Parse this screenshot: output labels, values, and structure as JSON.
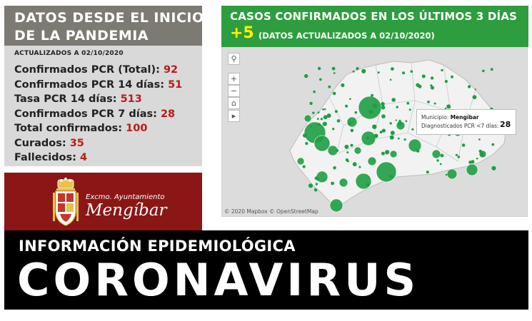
{
  "stats": {
    "title_line1": "DATOS DESDE EL INICIO",
    "title_line2": "DE LA PANDEMIA",
    "updated": "ACTUALIZADOS A 02/10/2020",
    "rows": [
      {
        "label": "Confirmados PCR (Total): ",
        "value": "92"
      },
      {
        "label": "Confirmados PCR 14 días: ",
        "value": "51"
      },
      {
        "label": "Tasa PCR 14 días: ",
        "value": "513"
      },
      {
        "label": "Confirmados PCR 7 días: ",
        "value": "28"
      },
      {
        "label": "Total confirmados: ",
        "value": "100"
      },
      {
        "label": "Curados: ",
        "value": "35"
      },
      {
        "label": "Fallecidos: ",
        "value": "4"
      }
    ]
  },
  "logo": {
    "line1": "Excmo. Ayuntamiento",
    "line2": "Mengíbar"
  },
  "map": {
    "title": "CASOS CONFIRMADOS EN LOS ÚLTIMOS 3 DÍAS",
    "delta": "+5",
    "subtitle": "(DATOS ACTUALIZADOS A 02/10/2020)",
    "controls": [
      "search-icon",
      "zoom-in-icon",
      "zoom-out-icon",
      "home-icon",
      "play-icon"
    ],
    "attribution": "© 2020 Mapbox  © OpenStreetMap",
    "tooltip": {
      "municipio_label": "Municipio: ",
      "municipio_value": "Mengíbar",
      "count_label": "Diagnosticados PCR <7 días:",
      "count_value": "28"
    },
    "colors": {
      "region": "#f2f2f2",
      "bubble": "#1e9e45",
      "header": "#2e9d3f"
    }
  },
  "banner": {
    "subtitle": "INFORMACIÓN EPIDEMIOLÓGICA",
    "title": "CORONAVIRUS"
  }
}
